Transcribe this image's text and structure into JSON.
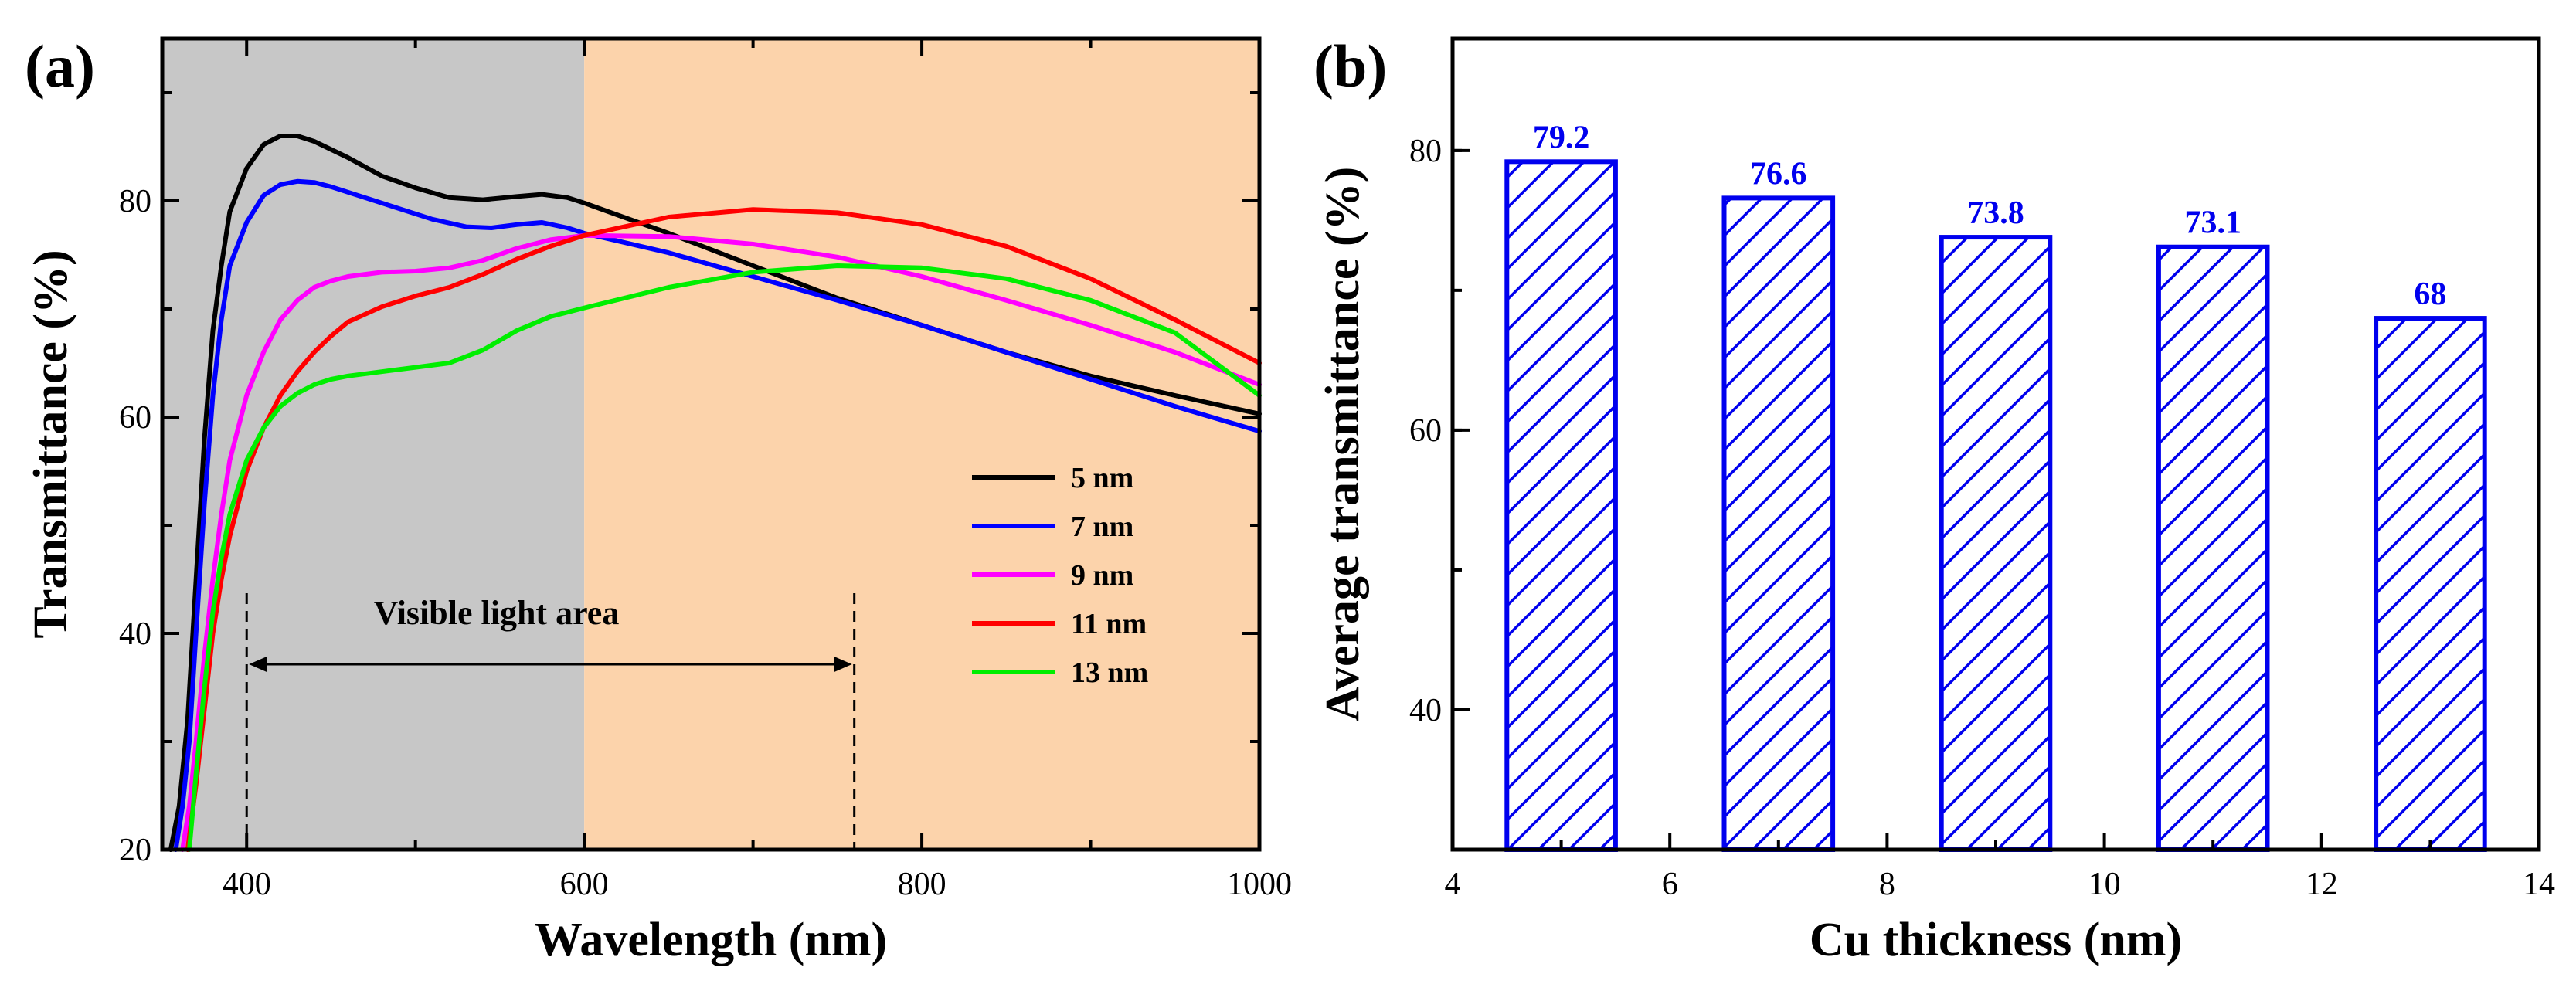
{
  "chart_data": [
    {
      "panel_label": "(a)",
      "type": "line",
      "xlabel": "Wavelength (nm)",
      "ylabel": "Transmittance (%)",
      "xlim": [
        350,
        1000
      ],
      "ylim": [
        20,
        95
      ],
      "xticks": [
        400,
        600,
        800,
        1000
      ],
      "yticks": [
        20,
        40,
        60,
        80
      ],
      "shaded_regions": [
        {
          "name": "uv-region",
          "x_range": [
            350,
            600
          ],
          "color": "#c7c7c7"
        },
        {
          "name": "visible-region",
          "x_range": [
            600,
            1000
          ],
          "color": "#fcd3ab"
        }
      ],
      "annotation": {
        "text": "Visible light area",
        "x_range": [
          400,
          760
        ]
      },
      "series": [
        {
          "name": "5 nm",
          "color": "#000000",
          "x": [
            355,
            360,
            365,
            370,
            375,
            380,
            385,
            390,
            400,
            410,
            420,
            430,
            440,
            460,
            480,
            500,
            520,
            540,
            560,
            575,
            590,
            600,
            650,
            700,
            750,
            800,
            850,
            900,
            950,
            1000
          ],
          "y": [
            20,
            24,
            32,
            45,
            58,
            68,
            74,
            79,
            83,
            85.2,
            86,
            86,
            85.5,
            84,
            82.3,
            81.2,
            80.3,
            80.1,
            80.4,
            80.6,
            80.3,
            79.8,
            77,
            74,
            71,
            68.5,
            66,
            63.8,
            62,
            60.3
          ]
        },
        {
          "name": "7 nm",
          "color": "#0000ff",
          "x": [
            358,
            362,
            366,
            370,
            375,
            380,
            385,
            390,
            400,
            410,
            420,
            430,
            440,
            450,
            470,
            490,
            510,
            530,
            545,
            560,
            575,
            590,
            600,
            650,
            700,
            750,
            800,
            850,
            900,
            950,
            1000
          ],
          "y": [
            20,
            24,
            30,
            40,
            52,
            62,
            69,
            74,
            78,
            80.5,
            81.5,
            81.8,
            81.7,
            81.3,
            80.3,
            79.3,
            78.3,
            77.6,
            77.5,
            77.8,
            78,
            77.5,
            77,
            75.2,
            73,
            70.8,
            68.5,
            66,
            63.5,
            61,
            58.7
          ]
        },
        {
          "name": "9 nm",
          "color": "#ff00ff",
          "x": [
            362,
            366,
            370,
            375,
            380,
            385,
            390,
            400,
            410,
            420,
            430,
            440,
            450,
            460,
            480,
            500,
            520,
            540,
            560,
            580,
            600,
            650,
            700,
            750,
            800,
            850,
            900,
            950,
            1000
          ],
          "y": [
            20,
            24,
            30,
            38,
            45,
            51,
            56,
            62,
            66,
            69,
            70.8,
            72,
            72.6,
            73,
            73.4,
            73.5,
            73.8,
            74.5,
            75.6,
            76.4,
            76.8,
            76.7,
            76,
            74.8,
            73,
            70.8,
            68.5,
            66,
            63
          ]
        },
        {
          "name": "11 nm",
          "color": "#ff0000",
          "x": [
            365,
            370,
            375,
            380,
            385,
            390,
            400,
            410,
            420,
            430,
            440,
            450,
            460,
            480,
            500,
            520,
            540,
            560,
            580,
            600,
            650,
            700,
            750,
            800,
            850,
            900,
            950,
            1000
          ],
          "y": [
            20,
            26,
            33,
            40,
            45,
            49,
            55,
            59,
            62,
            64.2,
            66,
            67.5,
            68.8,
            70.2,
            71.2,
            72,
            73.2,
            74.6,
            75.8,
            76.8,
            78.5,
            79.2,
            78.9,
            77.8,
            75.8,
            72.8,
            69,
            65
          ]
        },
        {
          "name": "13 nm",
          "color": "#00ee00",
          "x": [
            366,
            370,
            375,
            380,
            385,
            390,
            400,
            410,
            420,
            430,
            440,
            450,
            460,
            480,
            500,
            520,
            540,
            560,
            580,
            600,
            650,
            700,
            750,
            800,
            850,
            900,
            950,
            1000
          ],
          "y": [
            20,
            27,
            35,
            42,
            47,
            51,
            56,
            59,
            61,
            62.2,
            63,
            63.5,
            63.8,
            64.2,
            64.6,
            65,
            66.2,
            68,
            69.3,
            70.1,
            72,
            73.4,
            74,
            73.8,
            72.8,
            70.8,
            67.8,
            62
          ]
        }
      ]
    },
    {
      "panel_label": "(b)",
      "type": "bar",
      "xlabel": "Cu thickness (nm)",
      "ylabel": "Average transmittance (%)",
      "xlim": [
        4,
        14
      ],
      "ylim": [
        30,
        88
      ],
      "xticks": [
        4,
        6,
        8,
        10,
        12,
        14
      ],
      "yticks": [
        40,
        60,
        80
      ],
      "bar_color": "#0000ee",
      "fill_pattern": "diagonal-hatch",
      "categories": [
        5,
        7,
        9,
        11,
        13
      ],
      "values": [
        79.2,
        76.6,
        73.8,
        73.1,
        68
      ],
      "data_labels": [
        "79.2",
        "76.6",
        "73.8",
        "73.1",
        "68"
      ]
    }
  ]
}
